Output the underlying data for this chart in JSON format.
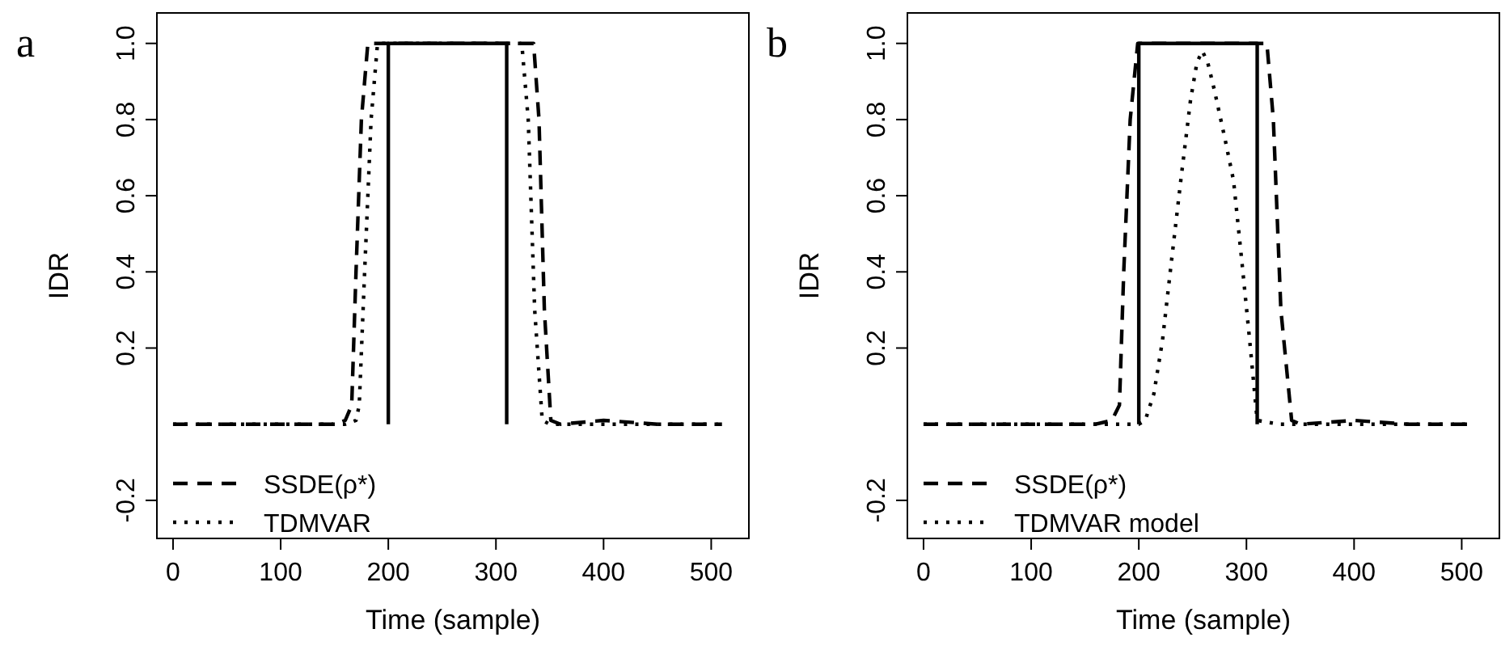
{
  "chart_data": [
    {
      "type": "line",
      "title": "a",
      "xlabel": "Time (sample)",
      "ylabel": "IDR",
      "xlim": [
        -15,
        535
      ],
      "ylim": [
        -0.3,
        1.08
      ],
      "xticks": [
        0,
        100,
        200,
        300,
        400,
        500
      ],
      "yticks": [
        -0.2,
        0.2,
        0.4,
        0.6,
        0.8,
        {
          "value": 1,
          "label": "1.0"
        }
      ],
      "legend": "bottom left",
      "grid": false,
      "series": [
        {
          "name": "SSDE(ρ*)",
          "color": "#000000",
          "line_style": "dashed",
          "x": [
            0,
            40,
            80,
            120,
            150,
            160,
            166,
            170,
            175,
            181,
            200,
            250,
            300,
            335,
            340,
            345,
            351,
            360,
            400,
            450,
            510
          ],
          "values": [
            0,
            0,
            0,
            0,
            0,
            0.01,
            0.05,
            0.4,
            0.8,
            1,
            1,
            1,
            1,
            1,
            0.8,
            0.3,
            0.01,
            0,
            0.01,
            0,
            0
          ]
        },
        {
          "name": "TDMVAR",
          "color": "#000000",
          "line_style": "dotted",
          "x": [
            0,
            40,
            80,
            120,
            160,
            170,
            173,
            178,
            184,
            190,
            200,
            250,
            300,
            324,
            330,
            336,
            343,
            350,
            400,
            450,
            510
          ],
          "values": [
            0,
            0,
            0,
            0,
            0,
            0.01,
            0.05,
            0.4,
            0.8,
            1,
            1,
            1,
            1,
            1,
            0.8,
            0.3,
            0.01,
            0,
            0,
            0,
            0
          ]
        },
        {
          "color": "#000000",
          "line_style": "solid",
          "x": [
            200,
            200,
            310,
            310
          ],
          "values": [
            0,
            1,
            1,
            0
          ]
        }
      ]
    },
    {
      "type": "line",
      "title": "b",
      "xlabel": "Time (sample)",
      "ylabel": "IDR",
      "xlim": [
        -15,
        535
      ],
      "ylim": [
        -0.3,
        1.08
      ],
      "xticks": [
        0,
        100,
        200,
        300,
        400,
        500
      ],
      "yticks": [
        -0.2,
        0.2,
        0.4,
        0.6,
        0.8,
        {
          "value": 1,
          "label": "1.0"
        }
      ],
      "legend": "bottom left",
      "grid": false,
      "series": [
        {
          "name": "SSDE(ρ*)",
          "color": "#000000",
          "line_style": "dashed",
          "x": [
            0,
            40,
            80,
            120,
            160,
            175,
            182,
            186,
            192,
            199,
            250,
            300,
            319,
            325,
            332,
            342,
            350,
            400,
            450,
            510
          ],
          "values": [
            0,
            0,
            0,
            0,
            0,
            0.01,
            0.05,
            0.4,
            0.8,
            1,
            1,
            1,
            1,
            0.8,
            0.3,
            0.01,
            0,
            0.01,
            0,
            0
          ]
        },
        {
          "name": "TDMVAR model",
          "color": "#000000",
          "line_style": "dotted",
          "x": [
            0,
            40,
            80,
            120,
            160,
            200,
            206,
            214,
            222,
            230,
            239,
            248,
            254,
            259,
            264,
            270,
            280,
            288,
            296,
            303,
            310,
            330,
            400,
            450,
            510
          ],
          "values": [
            0,
            0,
            0,
            0,
            0,
            0,
            0.01,
            0.08,
            0.22,
            0.42,
            0.64,
            0.85,
            0.95,
            0.98,
            0.95,
            0.88,
            0.75,
            0.64,
            0.42,
            0.22,
            0.01,
            0,
            0,
            0,
            0
          ]
        },
        {
          "color": "#000000",
          "line_style": "solid",
          "x": [
            200,
            200,
            310,
            310
          ],
          "values": [
            0,
            1,
            1,
            0
          ]
        }
      ]
    }
  ]
}
